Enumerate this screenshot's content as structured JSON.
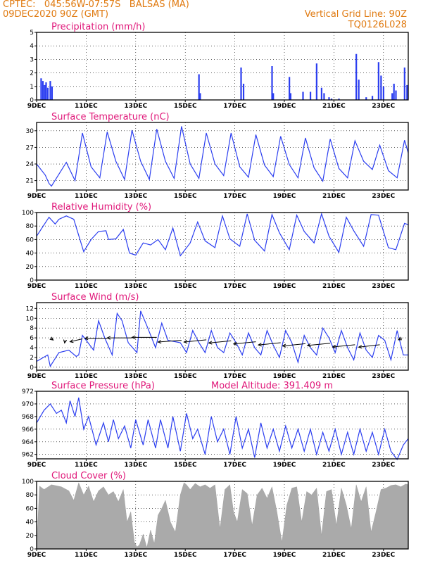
{
  "header": {
    "line1": "CPTEC:   045:56W-07:57S   BALSAS (MA)",
    "line2": "09DEC2020 90Z (GMT)",
    "right1": "Vertical Grid Line: 90Z",
    "right2": "TQ0126L028"
  },
  "colors": {
    "header": "#e07a10",
    "title": "#e0187a",
    "line": "#2b3ef0",
    "bars": "#2b3ef0",
    "cloud": "#aaaaaa",
    "arrows": "#000000"
  },
  "x_axis": {
    "ticks": [
      "9DEC",
      "11DEC",
      "13DEC",
      "15DEC",
      "17DEC",
      "19DEC",
      "21DEC",
      "23DEC"
    ],
    "tick_day": [
      0,
      2,
      4,
      6,
      8,
      10,
      12,
      14
    ],
    "range_days": [
      0,
      15
    ]
  },
  "chart_data": [
    {
      "id": "precip",
      "type": "bar",
      "title": "Precipitation (mm/h)",
      "ylim": [
        0,
        5
      ],
      "yticks": [
        "0",
        "1",
        "2",
        "3",
        "4",
        "5"
      ],
      "x_day": [
        0.18,
        0.25,
        0.32,
        0.38,
        0.45,
        0.55,
        0.62,
        6.55,
        6.6,
        8.25,
        8.35,
        9.5,
        9.55,
        10.2,
        10.25,
        10.75,
        11.05,
        11.3,
        11.5,
        11.6,
        11.8,
        11.9,
        12.2,
        12.9,
        13.0,
        13.3,
        13.55,
        13.8,
        13.9,
        14.0,
        14.35,
        14.42,
        14.5,
        14.85,
        14.95
      ],
      "values": [
        1.6,
        1.4,
        1.1,
        1.3,
        0.9,
        1.4,
        1.0,
        1.9,
        0.5,
        2.4,
        1.2,
        2.5,
        0.5,
        1.7,
        0.5,
        0.6,
        0.6,
        2.7,
        0.9,
        0.5,
        0.2,
        0.1,
        0.1,
        3.4,
        1.5,
        0.2,
        0.3,
        2.8,
        1.8,
        1.0,
        0.5,
        1.2,
        0.7,
        2.4,
        1.1
      ]
    },
    {
      "id": "temp",
      "type": "line",
      "title": "Surface Temperature (nC)",
      "ylim": [
        19.3,
        31.5
      ],
      "yticks": [
        "21",
        "24",
        "27",
        "30"
      ],
      "ytick_values": [
        21,
        24,
        27,
        30
      ],
      "x_day": [
        0,
        0.35,
        0.5,
        0.6,
        1.2,
        1.55,
        1.85,
        2.2,
        2.55,
        2.85,
        3.2,
        3.55,
        3.85,
        4.2,
        4.55,
        4.85,
        5.2,
        5.55,
        5.85,
        6.2,
        6.55,
        6.85,
        7.2,
        7.55,
        7.85,
        8.2,
        8.55,
        8.85,
        9.2,
        9.55,
        9.85,
        10.2,
        10.55,
        10.85,
        11.2,
        11.55,
        11.85,
        12.2,
        12.55,
        12.85,
        13.2,
        13.55,
        13.85,
        14.2,
        14.55,
        14.85,
        15.0
      ],
      "values": [
        24,
        22,
        20.5,
        20,
        24.3,
        21.0,
        29.6,
        23.5,
        21.5,
        29.8,
        24.5,
        21.2,
        30.1,
        24.5,
        21.2,
        30.3,
        24.5,
        21.4,
        30.8,
        24.0,
        21.4,
        29.6,
        24.0,
        21.9,
        29.6,
        23.5,
        21.6,
        29.3,
        23.8,
        21.7,
        29.0,
        23.9,
        21.5,
        28.7,
        23.3,
        20.9,
        28.5,
        23.2,
        21.5,
        28.2,
        24.5,
        23.0,
        27.4,
        22.8,
        21.5,
        28.3,
        26.0
      ]
    },
    {
      "id": "rh",
      "type": "line",
      "title": "Relative Humidity (%)",
      "ylim": [
        0,
        100
      ],
      "yticks": [
        "0",
        "20",
        "40",
        "60",
        "80",
        "100"
      ],
      "ytick_values": [
        0,
        20,
        40,
        60,
        80,
        100
      ],
      "x_day": [
        0,
        0.5,
        0.75,
        0.9,
        1.2,
        1.5,
        1.9,
        2.2,
        2.5,
        2.8,
        2.9,
        3.2,
        3.5,
        3.75,
        4.0,
        4.3,
        4.6,
        4.9,
        5.2,
        5.5,
        5.8,
        6.2,
        6.5,
        6.8,
        7.2,
        7.5,
        7.8,
        8.2,
        8.5,
        8.8,
        9.2,
        9.5,
        9.8,
        10.2,
        10.5,
        10.8,
        11.2,
        11.5,
        11.8,
        12.2,
        12.5,
        12.8,
        13.2,
        13.5,
        13.8,
        14.2,
        14.5,
        14.85,
        15.0
      ],
      "values": [
        65,
        93,
        83,
        90,
        95,
        90,
        42,
        60,
        72,
        73,
        60,
        61,
        75,
        40,
        37,
        55,
        52,
        60,
        45,
        77,
        36,
        55,
        86,
        58,
        48,
        95,
        61,
        50,
        98,
        59,
        43,
        97,
        70,
        45,
        96,
        72,
        55,
        98,
        65,
        41,
        93,
        73,
        50,
        97,
        96,
        48,
        45,
        84,
        82
      ]
    },
    {
      "id": "wind",
      "type": "line",
      "title": "Surface Wind (m/s)",
      "ylim": [
        -0.6,
        13.2
      ],
      "yticks": [
        "0",
        "2",
        "4",
        "6",
        "8",
        "10",
        "12"
      ],
      "ytick_values": [
        0,
        2,
        4,
        6,
        8,
        10,
        12
      ],
      "x_day": [
        0,
        0.45,
        0.55,
        0.9,
        1.3,
        1.6,
        1.7,
        1.85,
        2.3,
        2.5,
        2.75,
        3.05,
        3.25,
        3.45,
        3.7,
        4.05,
        4.2,
        4.45,
        4.8,
        5.05,
        5.3,
        5.8,
        6.05,
        6.3,
        6.55,
        6.8,
        7.05,
        7.3,
        7.55,
        7.8,
        8.05,
        8.3,
        8.55,
        8.8,
        9.05,
        9.3,
        9.55,
        9.8,
        10.05,
        10.3,
        10.55,
        10.8,
        11.05,
        11.3,
        11.55,
        11.8,
        12.05,
        12.3,
        12.55,
        12.8,
        13.05,
        13.3,
        13.55,
        13.8,
        14.05,
        14.3,
        14.55,
        14.8,
        15.0
      ],
      "values": [
        1.2,
        2.5,
        0.2,
        3.0,
        3.5,
        2.2,
        2.5,
        6.5,
        3.5,
        9.5,
        6.0,
        2.5,
        11.0,
        9.5,
        5.0,
        3.0,
        11.5,
        8.5,
        4.0,
        9.0,
        5.5,
        5.0,
        3.0,
        7.5,
        5.0,
        3.0,
        7.5,
        4.0,
        3.0,
        7.0,
        5.0,
        2.5,
        7.0,
        4.0,
        2.5,
        7.5,
        4.5,
        2.0,
        7.5,
        5.0,
        1.0,
        6.5,
        4.0,
        2.5,
        8.0,
        6.0,
        3.0,
        7.5,
        4.0,
        1.5,
        7.0,
        3.5,
        2.0,
        6.5,
        5.5,
        1.5,
        7.5,
        2.5,
        2.5
      ]
    },
    {
      "id": "pressure",
      "type": "line",
      "title": "Surface Pressure (hPa)",
      "subtitle": "Model Altitude: 391.409 m",
      "ylim": [
        961.3,
        972.0
      ],
      "yticks": [
        "962",
        "964",
        "966",
        "968",
        "970",
        "972"
      ],
      "ytick_values": [
        962,
        964,
        966,
        968,
        970,
        972
      ],
      "x_day": [
        0,
        0.3,
        0.55,
        0.8,
        1.0,
        1.2,
        1.35,
        1.55,
        1.7,
        1.9,
        2.1,
        2.4,
        2.7,
        2.9,
        3.1,
        3.3,
        3.55,
        3.8,
        4.0,
        4.3,
        4.5,
        4.8,
        5.0,
        5.3,
        5.5,
        5.8,
        6.05,
        6.3,
        6.5,
        6.8,
        7.05,
        7.3,
        7.55,
        7.8,
        8.05,
        8.3,
        8.55,
        8.8,
        9.05,
        9.3,
        9.55,
        9.8,
        10.05,
        10.3,
        10.55,
        10.8,
        11.05,
        11.3,
        11.55,
        11.8,
        12.05,
        12.3,
        12.55,
        12.8,
        13.05,
        13.3,
        13.55,
        13.8,
        14.05,
        14.3,
        14.55,
        14.8,
        15.0
      ],
      "values": [
        967,
        969,
        970,
        968.5,
        969,
        967,
        970.5,
        968,
        971,
        966,
        968,
        963.5,
        967,
        964,
        967.5,
        964.5,
        966.5,
        963,
        967.5,
        963.5,
        967.5,
        963,
        967.5,
        963,
        968,
        962.5,
        968.5,
        964.5,
        966,
        962,
        968,
        964,
        966,
        962,
        968,
        963,
        966,
        961.5,
        967,
        963,
        966,
        962.5,
        966.5,
        963,
        966,
        962.5,
        966,
        962,
        965.5,
        962.5,
        966,
        962,
        965.5,
        962,
        966,
        962.5,
        965.5,
        962,
        966,
        962.5,
        961.2,
        963.5,
        964.5
      ]
    },
    {
      "id": "cloud",
      "type": "area",
      "title": "Cloud Cover (%)",
      "ylim": [
        0,
        100
      ],
      "yticks": [
        "0",
        "20",
        "40",
        "60",
        "80",
        "100"
      ],
      "ytick_values": [
        0,
        20,
        40,
        60,
        80,
        100
      ],
      "x_day": [
        0,
        0.12,
        0.3,
        0.6,
        1.0,
        1.3,
        1.5,
        1.7,
        1.9,
        2.1,
        2.3,
        2.5,
        2.7,
        2.9,
        3.1,
        3.3,
        3.5,
        3.65,
        3.8,
        3.95,
        4.05,
        4.15,
        4.3,
        4.45,
        4.6,
        4.75,
        4.9,
        5.05,
        5.2,
        5.4,
        5.6,
        5.8,
        5.95,
        6.05,
        6.2,
        6.4,
        6.6,
        6.8,
        7.0,
        7.2,
        7.4,
        7.6,
        7.8,
        7.95,
        8.1,
        8.3,
        8.5,
        8.7,
        8.9,
        9.1,
        9.3,
        9.5,
        9.7,
        9.9,
        10.1,
        10.3,
        10.5,
        10.7,
        10.9,
        11.1,
        11.3,
        11.5,
        11.7,
        11.9,
        12.1,
        12.3,
        12.5,
        12.7,
        12.9,
        13.1,
        13.3,
        13.5,
        13.7,
        13.9,
        14.1,
        14.3,
        14.5,
        14.7,
        14.9,
        15.0
      ],
      "values": [
        2,
        93,
        88,
        95,
        92,
        86,
        72,
        98,
        80,
        93,
        70,
        86,
        92,
        80,
        85,
        70,
        88,
        40,
        55,
        10,
        3,
        6,
        22,
        2,
        28,
        8,
        50,
        60,
        72,
        40,
        25,
        80,
        98,
        95,
        88,
        97,
        92,
        95,
        90,
        95,
        30,
        88,
        95,
        55,
        40,
        88,
        82,
        35,
        80,
        90,
        75,
        92,
        55,
        10,
        65,
        90,
        92,
        40,
        85,
        80,
        90,
        20,
        85,
        88,
        35,
        90,
        65,
        30,
        95,
        70,
        92,
        25,
        55,
        88,
        90,
        94,
        95,
        92,
        96,
        95
      ]
    },
    {
      "id": "wind_arrows",
      "type": "scatter",
      "title": "",
      "x_day": [
        0.55,
        1.15,
        1.85,
        2.85,
        3.85,
        4.85,
        5.85,
        6.85,
        7.85,
        8.85,
        9.85,
        10.85,
        11.85,
        12.85,
        13.85,
        14.75
      ],
      "y": [
        6.0,
        5.5,
        5.8,
        5.9,
        6.0,
        6.1,
        5.5,
        5.6,
        5.4,
        5.2,
        5.0,
        4.8,
        4.9,
        4.6,
        4.6,
        6.0
      ],
      "dx": [
        0.12,
        -0.02,
        -0.5,
        -0.9,
        -1.0,
        -1.0,
        -0.95,
        -0.9,
        -0.9,
        -0.9,
        -0.9,
        -0.92,
        -0.92,
        -0.9,
        -0.85,
        -0.15
      ],
      "dy": [
        -0.45,
        -0.55,
        -0.6,
        0.0,
        0.0,
        0.0,
        -0.35,
        -0.45,
        -0.45,
        -0.45,
        -0.45,
        -0.45,
        -0.45,
        -0.45,
        -0.5,
        -0.4
      ]
    }
  ]
}
